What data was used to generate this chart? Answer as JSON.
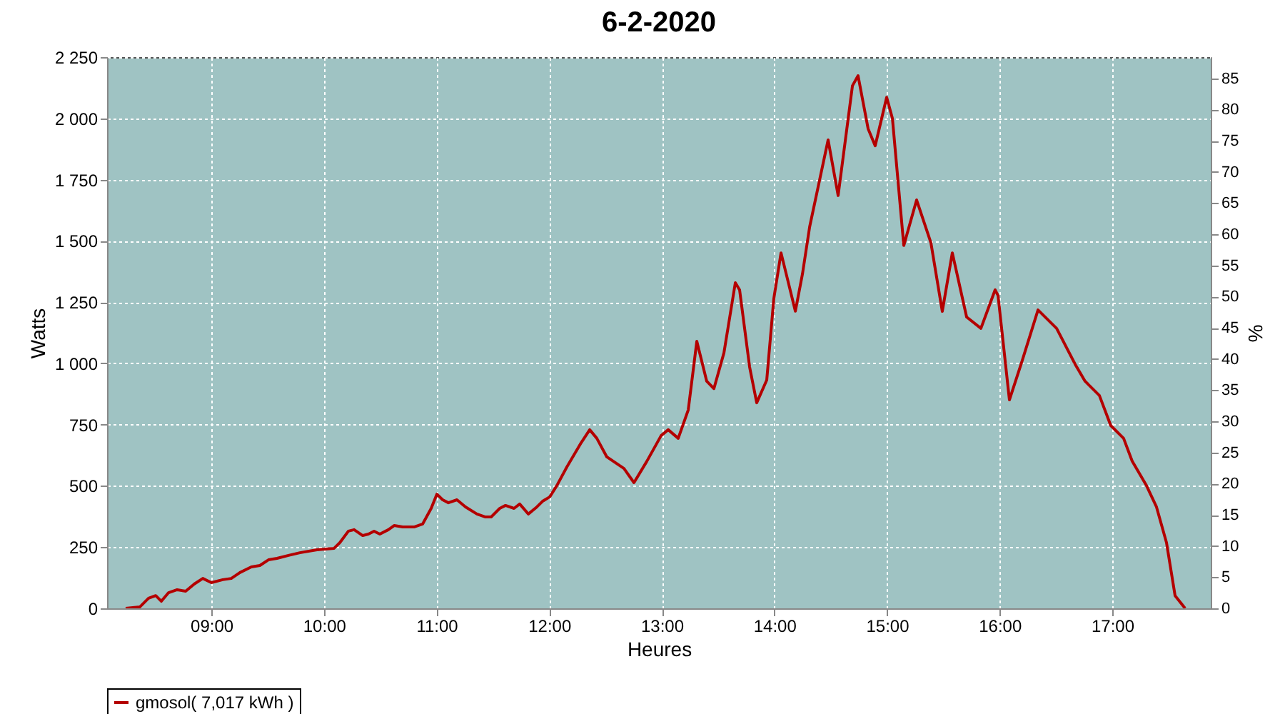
{
  "chart_data": {
    "type": "line",
    "title": "6-2-2020",
    "xlabel": "Heures",
    "ylabel": "Watts",
    "y2label": "%",
    "x": [
      8.239,
      8.366,
      8.442,
      8.506,
      8.556,
      8.62,
      8.696,
      8.772,
      8.848,
      8.924,
      9.0,
      9.101,
      9.177,
      9.254,
      9.355,
      9.431,
      9.507,
      9.583,
      9.685,
      9.786,
      9.938,
      10.09,
      10.141,
      10.217,
      10.268,
      10.344,
      10.395,
      10.445,
      10.496,
      10.572,
      10.623,
      10.699,
      10.8,
      10.876,
      10.952,
      11.003,
      11.054,
      11.105,
      11.181,
      11.257,
      11.358,
      11.434,
      11.485,
      11.561,
      11.612,
      11.688,
      11.738,
      11.815,
      11.891,
      11.941,
      12.005,
      12.068,
      12.157,
      12.284,
      12.36,
      12.423,
      12.512,
      12.664,
      12.753,
      12.867,
      12.994,
      13.057,
      13.146,
      13.235,
      13.311,
      13.399,
      13.463,
      13.552,
      13.653,
      13.691,
      13.78,
      13.843,
      13.932,
      13.995,
      14.059,
      14.186,
      14.249,
      14.313,
      14.477,
      14.566,
      14.693,
      14.743,
      14.832,
      14.895,
      14.997,
      15.048,
      15.149,
      15.263,
      15.39,
      15.491,
      15.58,
      15.707,
      15.834,
      15.96,
      15.986,
      16.087,
      16.2,
      16.341,
      16.506,
      16.67,
      16.759,
      16.886,
      16.987,
      17.101,
      17.177,
      17.304,
      17.393,
      17.482,
      17.558,
      17.647
    ],
    "series": [
      {
        "name": "gmosol( 7,017 kWh )",
        "color": "#b40000",
        "values": [
          0,
          6,
          41,
          52,
          29,
          64,
          76,
          70,
          99,
          122,
          105,
          117,
          122,
          146,
          169,
          175,
          198,
          204,
          216,
          227,
          239,
          245,
          268,
          315,
          321,
          297,
          303,
          315,
          303,
          321,
          338,
          332,
          332,
          344,
          408,
          466,
          443,
          431,
          443,
          414,
          385,
          373,
          373,
          408,
          420,
          408,
          426,
          385,
          414,
          437,
          455,
          501,
          577,
          676,
          729,
          694,
          618,
          571,
          513,
          600,
          705,
          729,
          694,
          810,
          1090,
          927,
          897,
          1043,
          1329,
          1300,
          985,
          839,
          932,
          1265,
          1451,
          1213,
          1364,
          1557,
          1912,
          1685,
          2133,
          2174,
          1958,
          1888,
          2086,
          2000,
          1481,
          1667,
          1492,
          1212,
          1451,
          1189,
          1143,
          1300,
          1277,
          851,
          1010,
          1218,
          1143,
          997,
          927,
          869,
          746,
          694,
          601,
          501,
          414,
          268,
          52,
          0
        ]
      }
    ],
    "xlim": [
      8.074,
      17.875
    ],
    "xticks": [
      {
        "value": 9,
        "label": "09:00"
      },
      {
        "value": 10,
        "label": "10:00"
      },
      {
        "value": 11,
        "label": "11:00"
      },
      {
        "value": 12,
        "label": "12:00"
      },
      {
        "value": 13,
        "label": "13:00"
      },
      {
        "value": 14,
        "label": "14:00"
      },
      {
        "value": 15,
        "label": "15:00"
      },
      {
        "value": 16,
        "label": "16:00"
      },
      {
        "value": 17,
        "label": "17:00"
      }
    ],
    "ylim": [
      0,
      2250
    ],
    "yticks": [
      0,
      250,
      500,
      750,
      {
        "value": 1000,
        "label": "1 000"
      },
      {
        "value": 1250,
        "label": "1 250"
      },
      {
        "value": 1500,
        "label": "1 500"
      },
      {
        "value": 1750,
        "label": "1 750"
      },
      {
        "value": 2000,
        "label": "2 000"
      },
      {
        "value": 2250,
        "label": "2 250"
      }
    ],
    "y2lim": [
      0,
      88.4
    ],
    "y2ticks": [
      0,
      5,
      10,
      15,
      20,
      25,
      30,
      35,
      40,
      45,
      50,
      55,
      60,
      65,
      70,
      75,
      80,
      85
    ],
    "grid": true,
    "legend": "bottom",
    "marker": "none",
    "line_style": "solid"
  }
}
